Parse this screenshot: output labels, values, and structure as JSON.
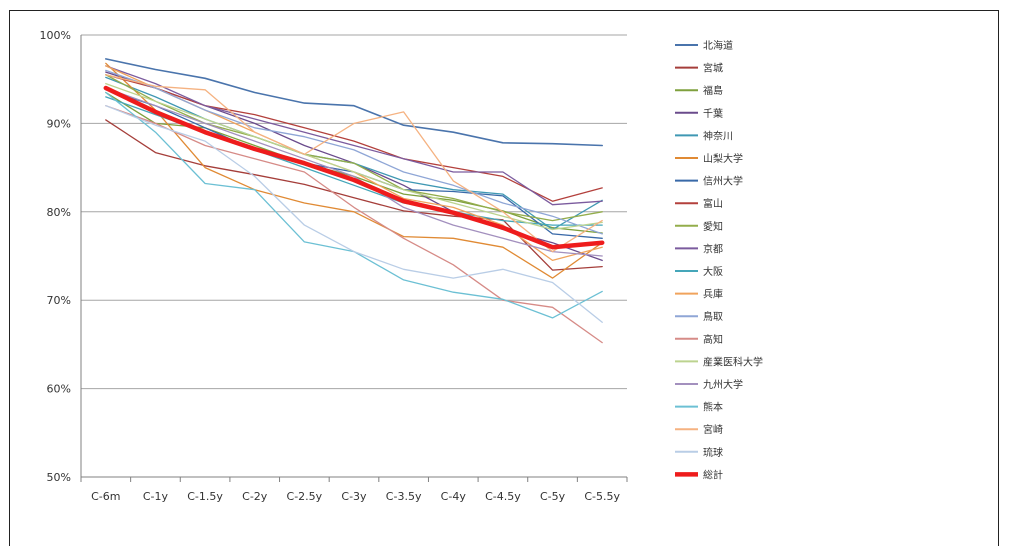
{
  "chart_data": {
    "type": "line",
    "title": "",
    "xlabel": "",
    "ylabel": "",
    "ylim": [
      50,
      100
    ],
    "y_ticks": [
      "50%",
      "60%",
      "70%",
      "80%",
      "90%",
      "100%"
    ],
    "y_tick_values": [
      50,
      60,
      70,
      80,
      90,
      100
    ],
    "categories": [
      "C-6m",
      "C-1y",
      "C-1.5y",
      "C-2y",
      "C-2.5y",
      "C-3y",
      "C-3.5y",
      "C-4y",
      "C-4.5y",
      "C-5y",
      "C-5.5y"
    ],
    "grid": "horizontal",
    "legend_position": "right",
    "series": [
      {
        "name": "北海道",
        "color": "#4a74ac",
        "width": 1.6,
        "values": [
          97.3,
          96.1,
          95.1,
          93.5,
          92.3,
          92.0,
          89.8,
          89.0,
          87.8,
          87.7,
          87.5
        ]
      },
      {
        "name": "宮城",
        "color": "#a53e3a",
        "width": 1.3,
        "values": [
          90.4,
          86.7,
          85.2,
          84.2,
          83.1,
          81.6,
          80.1,
          79.5,
          79.1,
          73.4,
          73.8
        ]
      },
      {
        "name": "福島",
        "color": "#7fa03d",
        "width": 1.3,
        "values": [
          93.5,
          90.0,
          89.5,
          87.5,
          85.5,
          84.0,
          82.0,
          81.3,
          80.1,
          78.2,
          77.6
        ]
      },
      {
        "name": "千葉",
        "color": "#6a4b8c",
        "width": 1.3,
        "values": [
          95.8,
          94.0,
          92.0,
          90.0,
          87.5,
          85.5,
          83.0,
          80.0,
          78.0,
          76.5,
          74.5
        ]
      },
      {
        "name": "神奈川",
        "color": "#3f98b3",
        "width": 1.3,
        "values": [
          95.2,
          93.0,
          90.5,
          88.5,
          86.5,
          85.5,
          83.5,
          82.5,
          82.0,
          78.0,
          81.3
        ]
      },
      {
        "name": "山梨大学",
        "color": "#e08a34",
        "width": 1.3,
        "values": [
          96.8,
          91.5,
          85.0,
          82.5,
          81.0,
          80.0,
          77.2,
          77.0,
          76.0,
          72.5,
          76.5
        ]
      },
      {
        "name": "信州大学",
        "color": "#3969a8",
        "width": 1.3,
        "values": [
          93.8,
          92.0,
          89.5,
          87.0,
          85.5,
          84.5,
          82.5,
          82.3,
          81.8,
          77.5,
          77.0
        ]
      },
      {
        "name": "富山",
        "color": "#b3403c",
        "width": 1.3,
        "values": [
          95.5,
          94.0,
          92.0,
          91.0,
          89.5,
          88.0,
          86.0,
          85.0,
          84.0,
          81.2,
          82.7
        ]
      },
      {
        "name": "愛知",
        "color": "#93ad4b",
        "width": 1.3,
        "values": [
          95.5,
          92.5,
          90.0,
          88.5,
          86.5,
          85.5,
          82.5,
          81.5,
          80.0,
          79.0,
          80.0
        ]
      },
      {
        "name": "京都",
        "color": "#7b5b9e",
        "width": 1.3,
        "values": [
          96.5,
          94.5,
          92.0,
          90.5,
          89.0,
          87.5,
          86.0,
          84.5,
          84.5,
          80.8,
          81.2
        ]
      },
      {
        "name": "大阪",
        "color": "#45a6b9",
        "width": 1.3,
        "values": [
          93.0,
          91.0,
          89.0,
          87.0,
          85.0,
          83.0,
          81.0,
          80.0,
          79.0,
          78.5,
          78.5
        ]
      },
      {
        "name": "兵庫",
        "color": "#f0a35c",
        "width": 1.3,
        "values": [
          96.5,
          94.0,
          91.5,
          89.0,
          86.5,
          84.5,
          81.5,
          80.5,
          78.5,
          74.5,
          76.0
        ]
      },
      {
        "name": "鳥取",
        "color": "#8fa6d6",
        "width": 1.3,
        "values": [
          96.0,
          94.0,
          91.5,
          89.5,
          88.5,
          87.0,
          84.5,
          83.0,
          81.0,
          79.5,
          77.5
        ]
      },
      {
        "name": "高知",
        "color": "#d68b87",
        "width": 1.3,
        "values": [
          92.0,
          90.0,
          87.5,
          86.0,
          84.5,
          80.5,
          77.0,
          74.0,
          70.0,
          69.2,
          65.2
        ]
      },
      {
        "name": "産業医科大学",
        "color": "#bcd38f",
        "width": 1.3,
        "values": [
          94.5,
          92.5,
          90.5,
          88.5,
          86.5,
          84.5,
          82.5,
          81.0,
          79.5,
          78.0,
          78.8
        ]
      },
      {
        "name": "九州大学",
        "color": "#a390be",
        "width": 1.3,
        "values": [
          94.0,
          92.0,
          90.0,
          88.0,
          86.0,
          84.0,
          80.5,
          78.5,
          77.0,
          75.5,
          75.0
        ]
      },
      {
        "name": "熊本",
        "color": "#6cc0d4",
        "width": 1.3,
        "values": [
          93.5,
          89.0,
          83.2,
          82.5,
          76.6,
          75.5,
          72.3,
          70.9,
          70.1,
          68.0,
          71.0
        ]
      },
      {
        "name": "宮崎",
        "color": "#f5b281",
        "width": 1.3,
        "values": [
          95.5,
          94.2,
          93.8,
          89.0,
          86.5,
          90.0,
          91.3,
          83.5,
          80.0,
          75.5,
          79.0
        ]
      },
      {
        "name": "琉球",
        "color": "#b9cde6",
        "width": 1.3,
        "values": [
          92.0,
          89.8,
          88.0,
          84.0,
          78.5,
          75.5,
          73.5,
          72.5,
          73.5,
          72.0,
          67.5
        ]
      },
      {
        "name": "総計",
        "color": "#ee1c1c",
        "width": 4.5,
        "values": [
          94.0,
          91.3,
          89.0,
          87.1,
          85.5,
          83.6,
          81.2,
          79.9,
          78.2,
          76.0,
          76.5
        ]
      }
    ]
  }
}
